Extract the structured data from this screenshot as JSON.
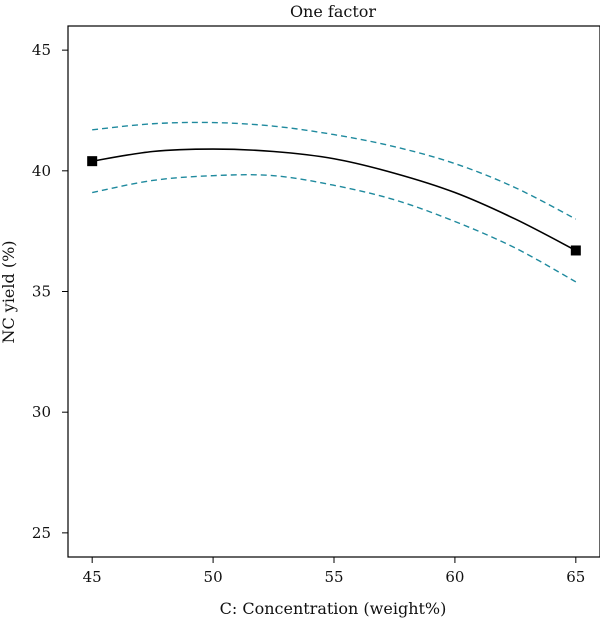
{
  "chart_data": {
    "type": "line",
    "title": "One factor",
    "xlabel": "C: Concentration (weight%)",
    "ylabel": "NC yield (%)",
    "xlim": [
      44,
      66
    ],
    "ylim": [
      24,
      46
    ],
    "xticks": [
      "45",
      "50",
      "55",
      "60",
      "65"
    ],
    "yticks": [
      "25",
      "30",
      "35",
      "40",
      "45"
    ],
    "grid": false,
    "colors": {
      "prediction": "#000000",
      "confidence_band": "#1f8a9e",
      "axis": "#000000"
    },
    "series": [
      {
        "style": "solid",
        "x": [
          45,
          47.5,
          50,
          52.5,
          55,
          57.5,
          60,
          62.5,
          65
        ],
        "y": [
          40.4,
          40.8,
          40.9,
          40.8,
          40.5,
          39.9,
          39.1,
          38.0,
          36.7
        ]
      },
      {
        "style": "dashed",
        "x": [
          45,
          47.5,
          50,
          52.5,
          55,
          57.5,
          60,
          62.5,
          65
        ],
        "y": [
          41.7,
          41.95,
          42.0,
          41.85,
          41.5,
          41.0,
          40.3,
          39.3,
          38.0
        ]
      },
      {
        "style": "dashed",
        "x": [
          45,
          47.5,
          50,
          52.5,
          55,
          57.5,
          60,
          62.5,
          65
        ],
        "y": [
          39.1,
          39.6,
          39.8,
          39.8,
          39.4,
          38.8,
          37.9,
          36.8,
          35.4
        ]
      }
    ],
    "design_points": {
      "marker": "square",
      "x": [
        45,
        65
      ],
      "y": [
        40.4,
        36.7
      ]
    }
  }
}
